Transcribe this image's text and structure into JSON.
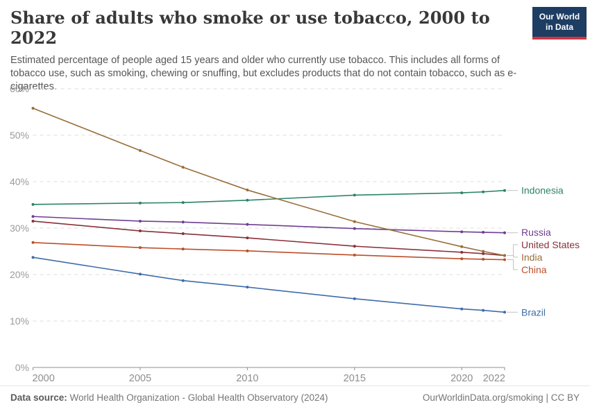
{
  "header": {
    "title": "Share of adults who smoke or use tobacco, 2000 to 2022",
    "subtitle": "Estimated percentage of people aged 15 years and older who currently use tobacco. This includes all forms of tobacco use, such as smoking, chewing or snuffing, but excludes products that do not contain tobacco, such as e-cigarettes.",
    "logo": {
      "line1": "Our World",
      "line2": "in Data",
      "bg_color": "#1d3d63",
      "accent_color": "#ce3540"
    }
  },
  "chart_data": {
    "type": "line",
    "title": "Share of adults who smoke or use tobacco, 2000 to 2022",
    "xlabel": "",
    "ylabel": "",
    "xlim": [
      2000,
      2022
    ],
    "ylim": [
      0,
      60
    ],
    "xticks": [
      2000,
      2005,
      2010,
      2015,
      2020,
      2022
    ],
    "yticks": [
      0,
      10,
      20,
      30,
      40,
      50,
      60
    ],
    "ytick_suffix": "%",
    "grid": "dashed-horizontal",
    "legend_position": "right-of-line-ends",
    "x": [
      2000,
      2005,
      2007,
      2010,
      2015,
      2020,
      2021,
      2022
    ],
    "series": [
      {
        "name": "Indonesia",
        "color": "#2C8465",
        "values": [
          35.1,
          35.4,
          35.5,
          36.0,
          37.1,
          37.6,
          37.8,
          38.1
        ]
      },
      {
        "name": "Russia",
        "color": "#6D3E91",
        "values": [
          32.5,
          31.5,
          31.3,
          30.8,
          29.9,
          29.2,
          29.1,
          29.0
        ]
      },
      {
        "name": "United States",
        "color": "#883039",
        "values": [
          31.5,
          29.4,
          28.8,
          27.9,
          26.1,
          24.8,
          24.5,
          24.1
        ]
      },
      {
        "name": "India",
        "color": "#996D39",
        "values": [
          55.8,
          46.7,
          43.1,
          38.2,
          31.4,
          26.0,
          25.0,
          24.1
        ]
      },
      {
        "name": "China",
        "color": "#BC4E29",
        "values": [
          26.9,
          25.8,
          25.5,
          25.1,
          24.2,
          23.4,
          23.3,
          23.2
        ]
      },
      {
        "name": "Brazil",
        "color": "#3E6CA9",
        "values": [
          23.7,
          20.1,
          18.7,
          17.3,
          14.8,
          12.6,
          12.3,
          11.9
        ]
      }
    ]
  },
  "footer": {
    "datasource_label": "Data source:",
    "datasource_text": "World Health Organization - Global Health Observatory (2024)",
    "link_text": "OurWorldinData.org/smoking",
    "separator": "|",
    "license_text": "CC BY"
  }
}
